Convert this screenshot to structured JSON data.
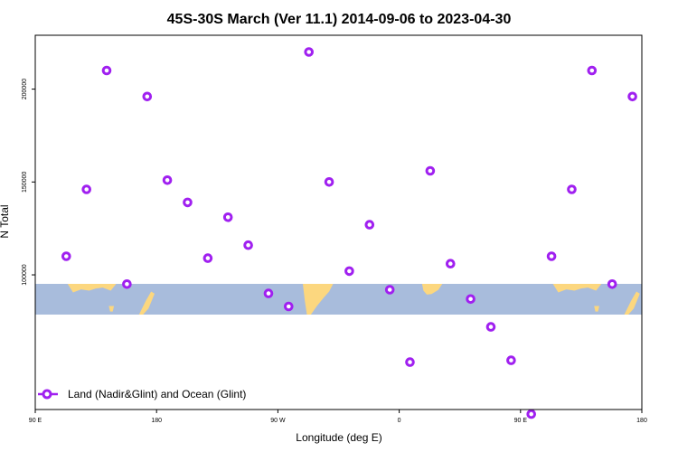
{
  "chart_data": {
    "type": "scatter",
    "title": "45S-30S March (Ver 11.1)   2014-09-06 to 2023-04-30",
    "xlabel": "Longitude (deg E)",
    "ylabel": "N Total",
    "xlim": [
      90,
      540
    ],
    "ylim": [
      27500,
      229000
    ],
    "x_ticks": [
      {
        "value": 90,
        "label": "90 E"
      },
      {
        "value": 180,
        "label": "180"
      },
      {
        "value": 270,
        "label": "90 W"
      },
      {
        "value": 360,
        "label": "0"
      },
      {
        "value": 450,
        "label": "90 E"
      },
      {
        "value": 540,
        "label": "180"
      }
    ],
    "y_ticks": [
      {
        "value": 100000,
        "label": "100000"
      },
      {
        "value": 150000,
        "label": "150000"
      },
      {
        "value": 200000,
        "label": "200000"
      }
    ],
    "grid": false,
    "legend_position": "bottom-left",
    "map_band_lat": [
      -45,
      -30
    ],
    "colors": {
      "series": "#a020f0",
      "ocean": "#a8bcdc",
      "land": "#fcd77f"
    },
    "series": [
      {
        "name": "Land (Nadir&Glint) and Ocean (Glint)",
        "points": [
          [
            113,
            110000
          ],
          [
            128,
            146000
          ],
          [
            143,
            210000
          ],
          [
            158,
            95000
          ],
          [
            173,
            196000
          ],
          [
            188,
            151000
          ],
          [
            203,
            139000
          ],
          [
            218,
            109000
          ],
          [
            233,
            131000
          ],
          [
            248,
            116000
          ],
          [
            263,
            90000
          ],
          [
            278,
            83000
          ],
          [
            293,
            220000
          ],
          [
            308,
            150000
          ],
          [
            323,
            102000
          ],
          [
            338,
            127000
          ],
          [
            353,
            92000
          ],
          [
            368,
            53000
          ],
          [
            383,
            156000
          ],
          [
            398,
            106000
          ],
          [
            413,
            87000
          ],
          [
            428,
            72000
          ],
          [
            443,
            54000
          ],
          [
            458,
            25000
          ],
          [
            473,
            110000
          ],
          [
            488,
            146000
          ],
          [
            503,
            210000
          ],
          [
            518,
            95000
          ],
          [
            533,
            196000
          ]
        ]
      }
    ]
  }
}
